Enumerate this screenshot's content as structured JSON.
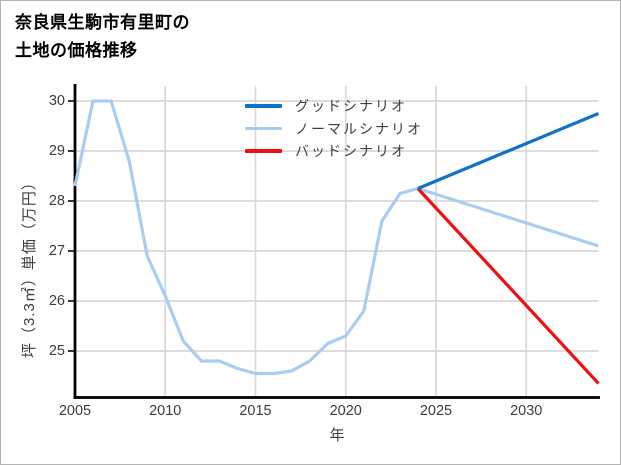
{
  "title": {
    "line1": "奈良県生駒市有里町の",
    "line2": "土地の価格推移"
  },
  "chart_data": {
    "type": "line",
    "title": "奈良県生駒市有里町の土地の価格推移",
    "xlabel": "年",
    "ylabel": "坪（3.3㎡）単価（万円）",
    "x_ticks": [
      2005,
      2010,
      2015,
      2020,
      2025,
      2030
    ],
    "y_ticks": [
      25,
      26,
      27,
      28,
      29,
      30
    ],
    "xlim": [
      2005,
      2034
    ],
    "ylim": [
      24.07,
      30.3
    ],
    "grid": true,
    "legend_position": "upper-left-inside",
    "colors": {
      "good": "#0f72c9",
      "normal": "#a7cdf3",
      "bad": "#ee1111",
      "gridline": "#d8d8d8",
      "axis": "#000000",
      "text": "#3d3d3d"
    },
    "series": [
      {
        "name": "グッドシナリオ",
        "key": "good",
        "color": "#0f72c9",
        "x": [
          2024,
          2034
        ],
        "values": [
          28.25,
          29.75
        ]
      },
      {
        "name": "ノーマルシナリオ",
        "key": "normal",
        "color": "#a7cdf3",
        "x": [
          2005,
          2006,
          2007,
          2008,
          2009,
          2010,
          2011,
          2012,
          2013,
          2014,
          2015,
          2016,
          2017,
          2018,
          2019,
          2020,
          2021,
          2022,
          2023,
          2024,
          2034
        ],
        "values": [
          28.3,
          30.0,
          30.0,
          28.8,
          26.9,
          26.1,
          25.2,
          24.8,
          24.8,
          24.65,
          24.55,
          24.55,
          24.6,
          24.8,
          25.15,
          25.3,
          25.8,
          27.6,
          28.15,
          28.25,
          27.1
        ]
      },
      {
        "name": "バッドシナリオ",
        "key": "bad",
        "color": "#ee1111",
        "x": [
          2024,
          2034
        ],
        "values": [
          28.25,
          24.35
        ]
      }
    ]
  }
}
